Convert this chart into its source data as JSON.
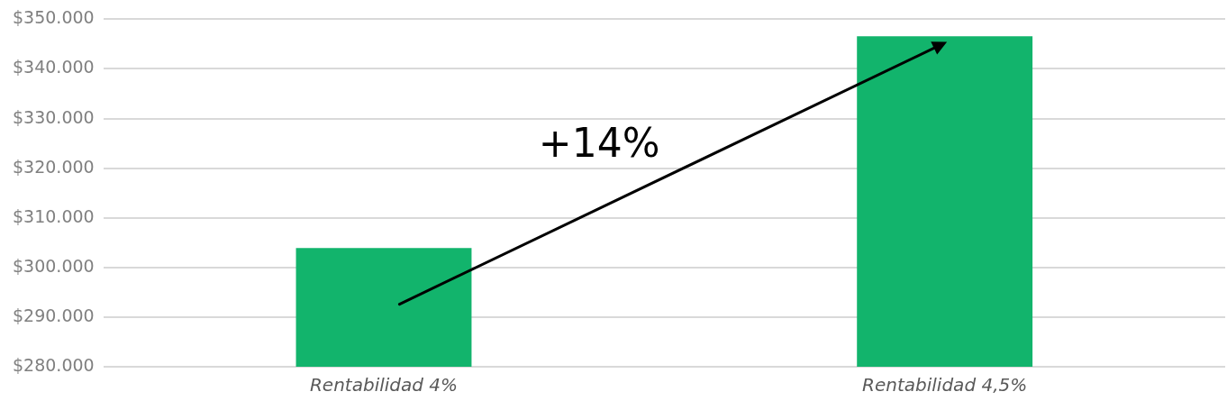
{
  "chart_data": {
    "type": "bar",
    "categories": [
      "Rentabilidad 4%",
      "Rentabilidad 4,5%"
    ],
    "series": [
      {
        "color": "#12b46c",
        "values": [
          303900,
          346600
        ]
      }
    ],
    "ylim": [
      280000,
      350000
    ],
    "yticks": [
      {
        "value": 280000,
        "label": "$280.000"
      },
      {
        "value": 290000,
        "label": "$290.000"
      },
      {
        "value": 300000,
        "label": "$300.000"
      },
      {
        "value": 310000,
        "label": "$310.000"
      },
      {
        "value": 320000,
        "label": "$320.000"
      },
      {
        "value": 330000,
        "label": "$330.000"
      },
      {
        "value": 340000,
        "label": "$340.000"
      },
      {
        "value": 350000,
        "label": "$350.000"
      }
    ],
    "grid": "y",
    "legend": false,
    "annotations": [
      "+14%"
    ]
  }
}
